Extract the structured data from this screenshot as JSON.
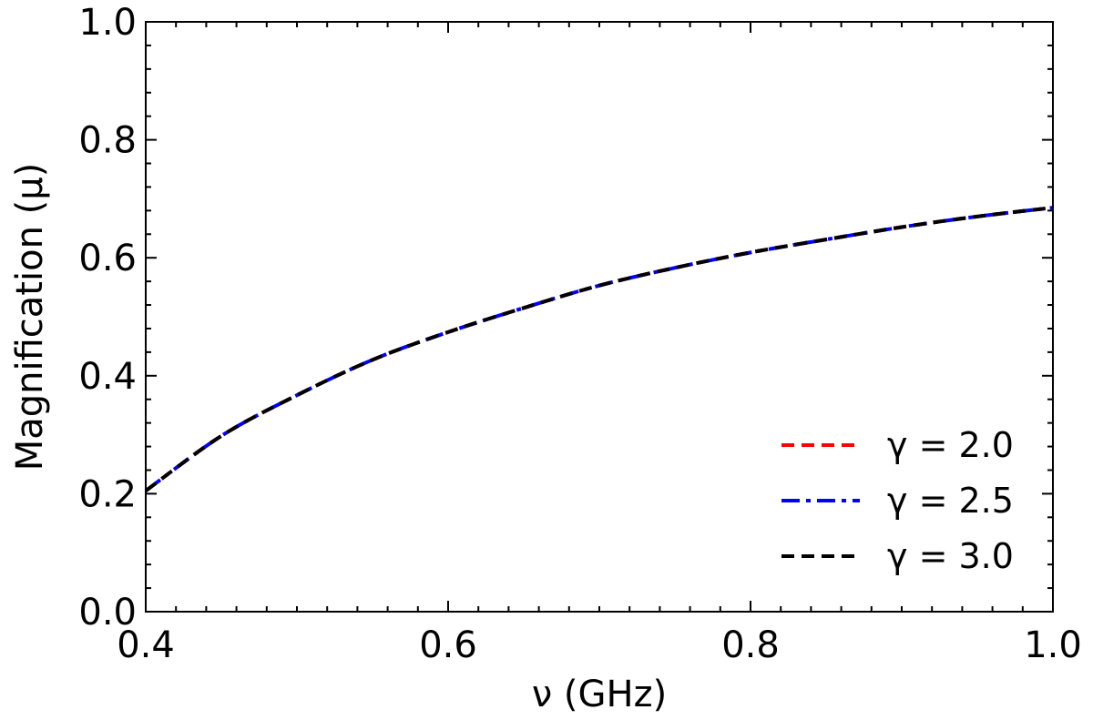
{
  "chart_data": {
    "type": "line",
    "xlabel": "ν (GHz)",
    "ylabel": "Magnification (μ)",
    "xlim": [
      0.4,
      1.0
    ],
    "ylim": [
      0.0,
      1.0
    ],
    "xticks": [
      "0.4",
      "0.6",
      "0.8",
      "1.0"
    ],
    "yticks": [
      "0.0",
      "0.2",
      "0.4",
      "0.6",
      "0.8",
      "1.0"
    ],
    "grid": false,
    "legend_position": "lower-right",
    "x": [
      0.4,
      0.45,
      0.5,
      0.55,
      0.6,
      0.65,
      0.7,
      0.75,
      0.8,
      0.85,
      0.9,
      0.95,
      1.0
    ],
    "series": [
      {
        "name": "γ = 2.0",
        "color": "#ff0000",
        "style": "dashed",
        "values": [
          0.205,
          0.298,
          0.367,
          0.427,
          0.474,
          0.515,
          0.553,
          0.583,
          0.609,
          0.631,
          0.652,
          0.67,
          0.685
        ]
      },
      {
        "name": "γ = 2.5",
        "color": "#0000ff",
        "style": "dashdot",
        "values": [
          0.205,
          0.298,
          0.367,
          0.427,
          0.474,
          0.515,
          0.553,
          0.583,
          0.609,
          0.631,
          0.652,
          0.67,
          0.685
        ]
      },
      {
        "name": "γ = 3.0",
        "color": "#000000",
        "style": "dashed",
        "values": [
          0.205,
          0.298,
          0.367,
          0.427,
          0.474,
          0.515,
          0.553,
          0.583,
          0.609,
          0.631,
          0.652,
          0.67,
          0.685
        ]
      }
    ]
  }
}
